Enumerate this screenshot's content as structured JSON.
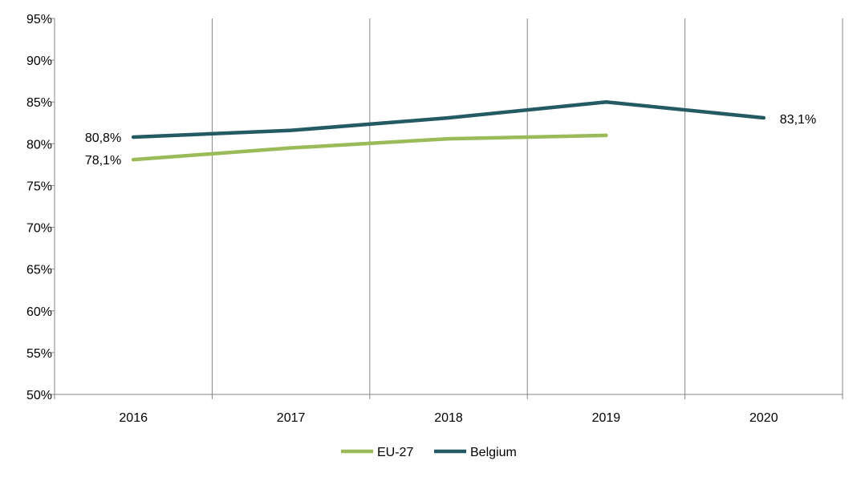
{
  "chart_data": {
    "type": "line",
    "title": "",
    "xlabel": "",
    "ylabel": "",
    "categories": [
      "2016",
      "2017",
      "2018",
      "2019",
      "2020"
    ],
    "ylim": [
      50,
      95
    ],
    "yticks": [
      {
        "value": 95,
        "label": "95%"
      },
      {
        "value": 90,
        "label": "90%"
      },
      {
        "value": 85,
        "label": "85%"
      },
      {
        "value": 80,
        "label": "80%"
      },
      {
        "value": 75,
        "label": "75%"
      },
      {
        "value": 70,
        "label": "70%"
      },
      {
        "value": 65,
        "label": "65%"
      },
      {
        "value": 60,
        "label": "60%"
      },
      {
        "value": 55,
        "label": "55%"
      },
      {
        "value": 50,
        "label": "50%"
      }
    ],
    "grid": "vertical",
    "legend_position": "bottom-center",
    "series": [
      {
        "name": "EU-27",
        "color": "#9bbb59",
        "values": [
          78.1,
          79.5,
          80.6,
          81.0,
          null
        ]
      },
      {
        "name": "Belgium",
        "color": "#245a63",
        "values": [
          80.8,
          81.6,
          83.1,
          85.0,
          83.1
        ]
      }
    ],
    "data_labels": [
      {
        "series": "Belgium",
        "index": 0,
        "text": "80,8%"
      },
      {
        "series": "EU-27",
        "index": 0,
        "text": "78,1%"
      },
      {
        "series": "Belgium",
        "index": 4,
        "text": "83,1%"
      }
    ]
  }
}
